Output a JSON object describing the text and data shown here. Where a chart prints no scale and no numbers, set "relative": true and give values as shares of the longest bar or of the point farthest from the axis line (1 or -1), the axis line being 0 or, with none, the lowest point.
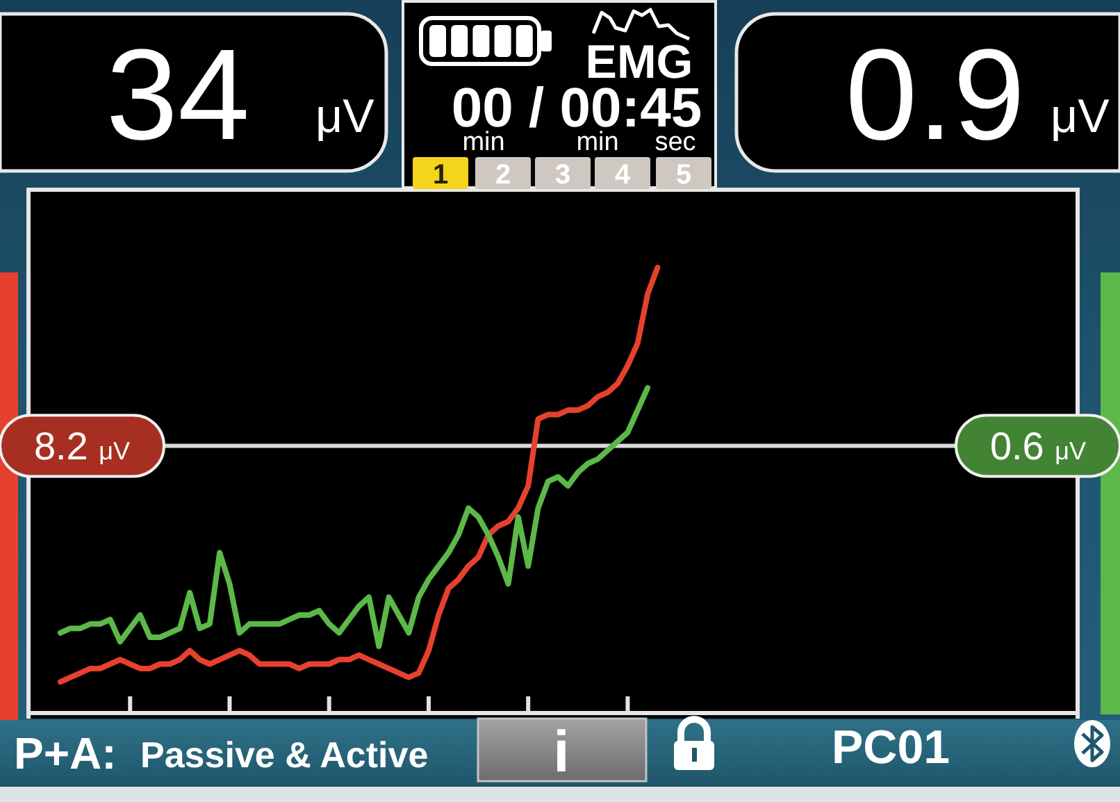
{
  "chart_data": {
    "type": "line",
    "relative": true,
    "categories": [
      null,
      null,
      null,
      null,
      null,
      null,
      null,
      null,
      null,
      null,
      null,
      null,
      null,
      null,
      null,
      null,
      null,
      null,
      null,
      null,
      null,
      null,
      null,
      null,
      null,
      null,
      null,
      null,
      null,
      null,
      null,
      null,
      null,
      null,
      null,
      null,
      null,
      null,
      null,
      null,
      null,
      null,
      null,
      null,
      null,
      null,
      null,
      null,
      null,
      null,
      null,
      null,
      null,
      null,
      null,
      null,
      null,
      null,
      null,
      null,
      null,
      null,
      null,
      null,
      null,
      null,
      null,
      null,
      null,
      null,
      null,
      null,
      null,
      null,
      null,
      null,
      null,
      null,
      null,
      null,
      null,
      null,
      null,
      null,
      null,
      null,
      null,
      null,
      null,
      null,
      null,
      null,
      null,
      null,
      null,
      null,
      null,
      null,
      null,
      null,
      null,
      null,
      null,
      null,
      null,
      null
    ],
    "series": [
      {
        "color": "#e6412f",
        "values": [
          null,
          null,
          null,
          0.07,
          0.08,
          0.09,
          0.1,
          0.1,
          0.11,
          0.12,
          0.11,
          0.1,
          0.1,
          0.11,
          0.11,
          0.12,
          0.14,
          0.12,
          0.11,
          0.12,
          0.13,
          0.14,
          0.13,
          0.11,
          0.11,
          0.11,
          0.11,
          0.1,
          0.11,
          0.11,
          0.11,
          0.12,
          0.12,
          0.13,
          0.12,
          0.11,
          0.1,
          0.09,
          0.08,
          0.09,
          0.14,
          0.22,
          0.28,
          0.3,
          0.33,
          0.35,
          0.4,
          0.42,
          0.43,
          0.46,
          0.51,
          0.66,
          0.67,
          0.67,
          0.68,
          0.68,
          0.69,
          0.71,
          0.72,
          0.74,
          0.78,
          0.83,
          0.94,
          1.0,
          null,
          null,
          null,
          null,
          null,
          null,
          null,
          null,
          null,
          null,
          null,
          null,
          null,
          null,
          null,
          null,
          null,
          null,
          null,
          null,
          null,
          null,
          null,
          null,
          null,
          null,
          null,
          null,
          null,
          null,
          null,
          null,
          null,
          null,
          null,
          null,
          null,
          null,
          null,
          null,
          null,
          null
        ]
      },
      {
        "color": "#5cb848",
        "values": [
          null,
          null,
          null,
          0.18,
          0.19,
          0.19,
          0.2,
          0.2,
          0.21,
          0.16,
          0.19,
          0.22,
          0.17,
          0.17,
          0.18,
          0.19,
          0.27,
          0.19,
          0.2,
          0.36,
          0.29,
          0.18,
          0.2,
          0.2,
          0.2,
          0.2,
          0.21,
          0.22,
          0.22,
          0.23,
          0.2,
          0.18,
          0.21,
          0.24,
          0.26,
          0.15,
          0.26,
          0.22,
          0.18,
          0.26,
          0.3,
          0.33,
          0.36,
          0.4,
          0.46,
          0.44,
          0.4,
          0.35,
          0.29,
          0.44,
          0.33,
          0.46,
          0.52,
          0.53,
          0.51,
          0.54,
          0.56,
          0.57,
          0.59,
          0.61,
          0.63,
          0.68,
          0.73,
          null,
          null,
          null,
          null,
          null,
          null,
          null,
          null,
          null,
          null,
          null,
          null,
          null,
          null,
          null,
          null,
          null,
          null,
          null,
          null,
          null,
          null,
          null,
          null,
          null,
          null,
          null,
          null,
          null,
          null,
          null,
          null,
          null,
          null,
          null,
          null,
          null,
          null,
          null,
          null,
          null,
          null,
          null
        ]
      }
    ],
    "ref_lines": [
      {
        "axis": "y",
        "value": 0.6,
        "label": "8.2 μV",
        "color": "#d9d9d9"
      }
    ],
    "annotations": [
      "34",
      "μV",
      "EMG",
      "00 / 00:45",
      "min",
      "min",
      "sec",
      "1",
      "2",
      "3",
      "4",
      "5",
      "0.9",
      "μV",
      "P+A:",
      "Passive & Active",
      "i",
      "PC01",
      {
        "text": "0.6 μV",
        "y": 0.6
      }
    ]
  }
}
